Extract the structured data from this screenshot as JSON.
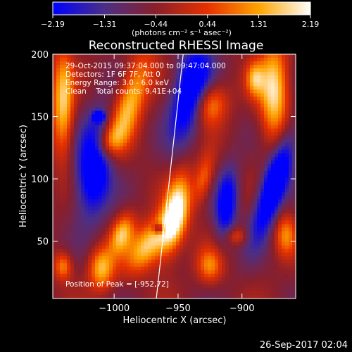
{
  "chart_data": {
    "type": "heatmap",
    "title": "Reconstructed RHESSI Image",
    "xlabel": "Heliocentric X (arcsec)",
    "ylabel": "Heliocentric Y (arcsec)",
    "xlim": [
      -1048,
      -858
    ],
    "ylim": [
      4,
      200
    ],
    "x_ticks": [
      -1000,
      -950,
      -900
    ],
    "x_tick_labels": [
      "−1000",
      "−950",
      "−900"
    ],
    "y_ticks": [
      50,
      100,
      150,
      200
    ],
    "y_tick_labels": [
      "50",
      "100",
      "150",
      "200"
    ],
    "colorbar": {
      "min": -2.19,
      "max": 2.19,
      "ticks": [
        -2.19,
        -1.31,
        -0.44,
        0.44,
        1.31,
        2.19
      ],
      "tick_labels": [
        "−2.19",
        "−1.31",
        "−0.44",
        "0.44",
        "1.31",
        "2.19"
      ],
      "unit_label": "(photons cm⁻² s⁻¹ asec⁻²)",
      "colormap": [
        "#0000ff",
        "#4b2f86",
        "#8a1f2a",
        "#e63000",
        "#ffa400",
        "#ffffff"
      ]
    },
    "annotations": [
      "29-Oct-2015 09:37:04.000 to 09:47:04.000",
      "Detectors: 1F 6F 7F, Att 0",
      "Energy Range: 3.0 - 6.0 keV",
      "Clean    Total counts: 9.41E+04"
    ],
    "peak_label": "Position of Peak = [-952,72]",
    "peak": [
      -952,
      72
    ],
    "limb_line": [
      [
        -967,
        4
      ],
      [
        -946,
        200
      ]
    ],
    "sources": [
      {
        "x": -952,
        "y": 72,
        "sx": 7,
        "sy": 22,
        "amp": 2.9,
        "rot": 0.18
      },
      {
        "x": -972,
        "y": 48,
        "sx": 9,
        "sy": 18,
        "amp": 2.3,
        "rot": 0.6
      },
      {
        "x": -994,
        "y": 56,
        "sx": 6,
        "sy": 12,
        "amp": 1.9,
        "rot": 0.3
      },
      {
        "x": -1010,
        "y": 28,
        "sx": 7,
        "sy": 12,
        "amp": 2.0,
        "rot": 0.0
      },
      {
        "x": -1040,
        "y": 30,
        "sx": 5,
        "sy": 8,
        "amp": 1.6,
        "rot": 0.0
      },
      {
        "x": -1040,
        "y": 160,
        "sx": 6,
        "sy": 30,
        "amp": 2.2,
        "rot": 0.0
      },
      {
        "x": -1005,
        "y": 130,
        "sx": 7,
        "sy": 10,
        "amp": 1.5,
        "rot": 0.5
      },
      {
        "x": -988,
        "y": 160,
        "sx": 8,
        "sy": 30,
        "amp": 2.1,
        "rot": 0.3
      },
      {
        "x": -925,
        "y": 160,
        "sx": 9,
        "sy": 12,
        "amp": 1.8,
        "rot": 0.2
      },
      {
        "x": -890,
        "y": 180,
        "sx": 5,
        "sy": 10,
        "amp": 1.6,
        "rot": 0.0
      },
      {
        "x": -875,
        "y": 170,
        "sx": 8,
        "sy": 28,
        "amp": 2.4,
        "rot": 0.0
      },
      {
        "x": -930,
        "y": 100,
        "sx": 5,
        "sy": 14,
        "amp": 1.4,
        "rot": 0.2
      },
      {
        "x": -925,
        "y": 30,
        "sx": 7,
        "sy": 10,
        "amp": 1.5,
        "rot": 0.0
      },
      {
        "x": -866,
        "y": 55,
        "sx": 6,
        "sy": 12,
        "amp": 1.5,
        "rot": 0.0
      },
      {
        "x": -904,
        "y": 54,
        "sx": 6,
        "sy": 5,
        "amp": 1.1,
        "rot": 0.0
      },
      {
        "x": -1012,
        "y": 150,
        "sx": 3,
        "sy": 3,
        "amp": -2.6,
        "rot": 0.0
      },
      {
        "x": -1015,
        "y": 110,
        "sx": 10,
        "sy": 28,
        "amp": -2.7,
        "rot": 0.1
      },
      {
        "x": -940,
        "y": 170,
        "sx": 10,
        "sy": 28,
        "amp": -2.5,
        "rot": 0.2
      },
      {
        "x": -875,
        "y": 95,
        "sx": 7,
        "sy": 30,
        "amp": -2.9,
        "rot": 0.3
      },
      {
        "x": -965,
        "y": 60,
        "sx": 3,
        "sy": 3,
        "amp": -2.0,
        "rot": 0.0
      },
      {
        "x": -912,
        "y": 80,
        "sx": 6,
        "sy": 20,
        "amp": -2.1,
        "rot": 0.1
      }
    ]
  },
  "footer": {
    "timestamp": "26-Sep-2017 02:04"
  }
}
